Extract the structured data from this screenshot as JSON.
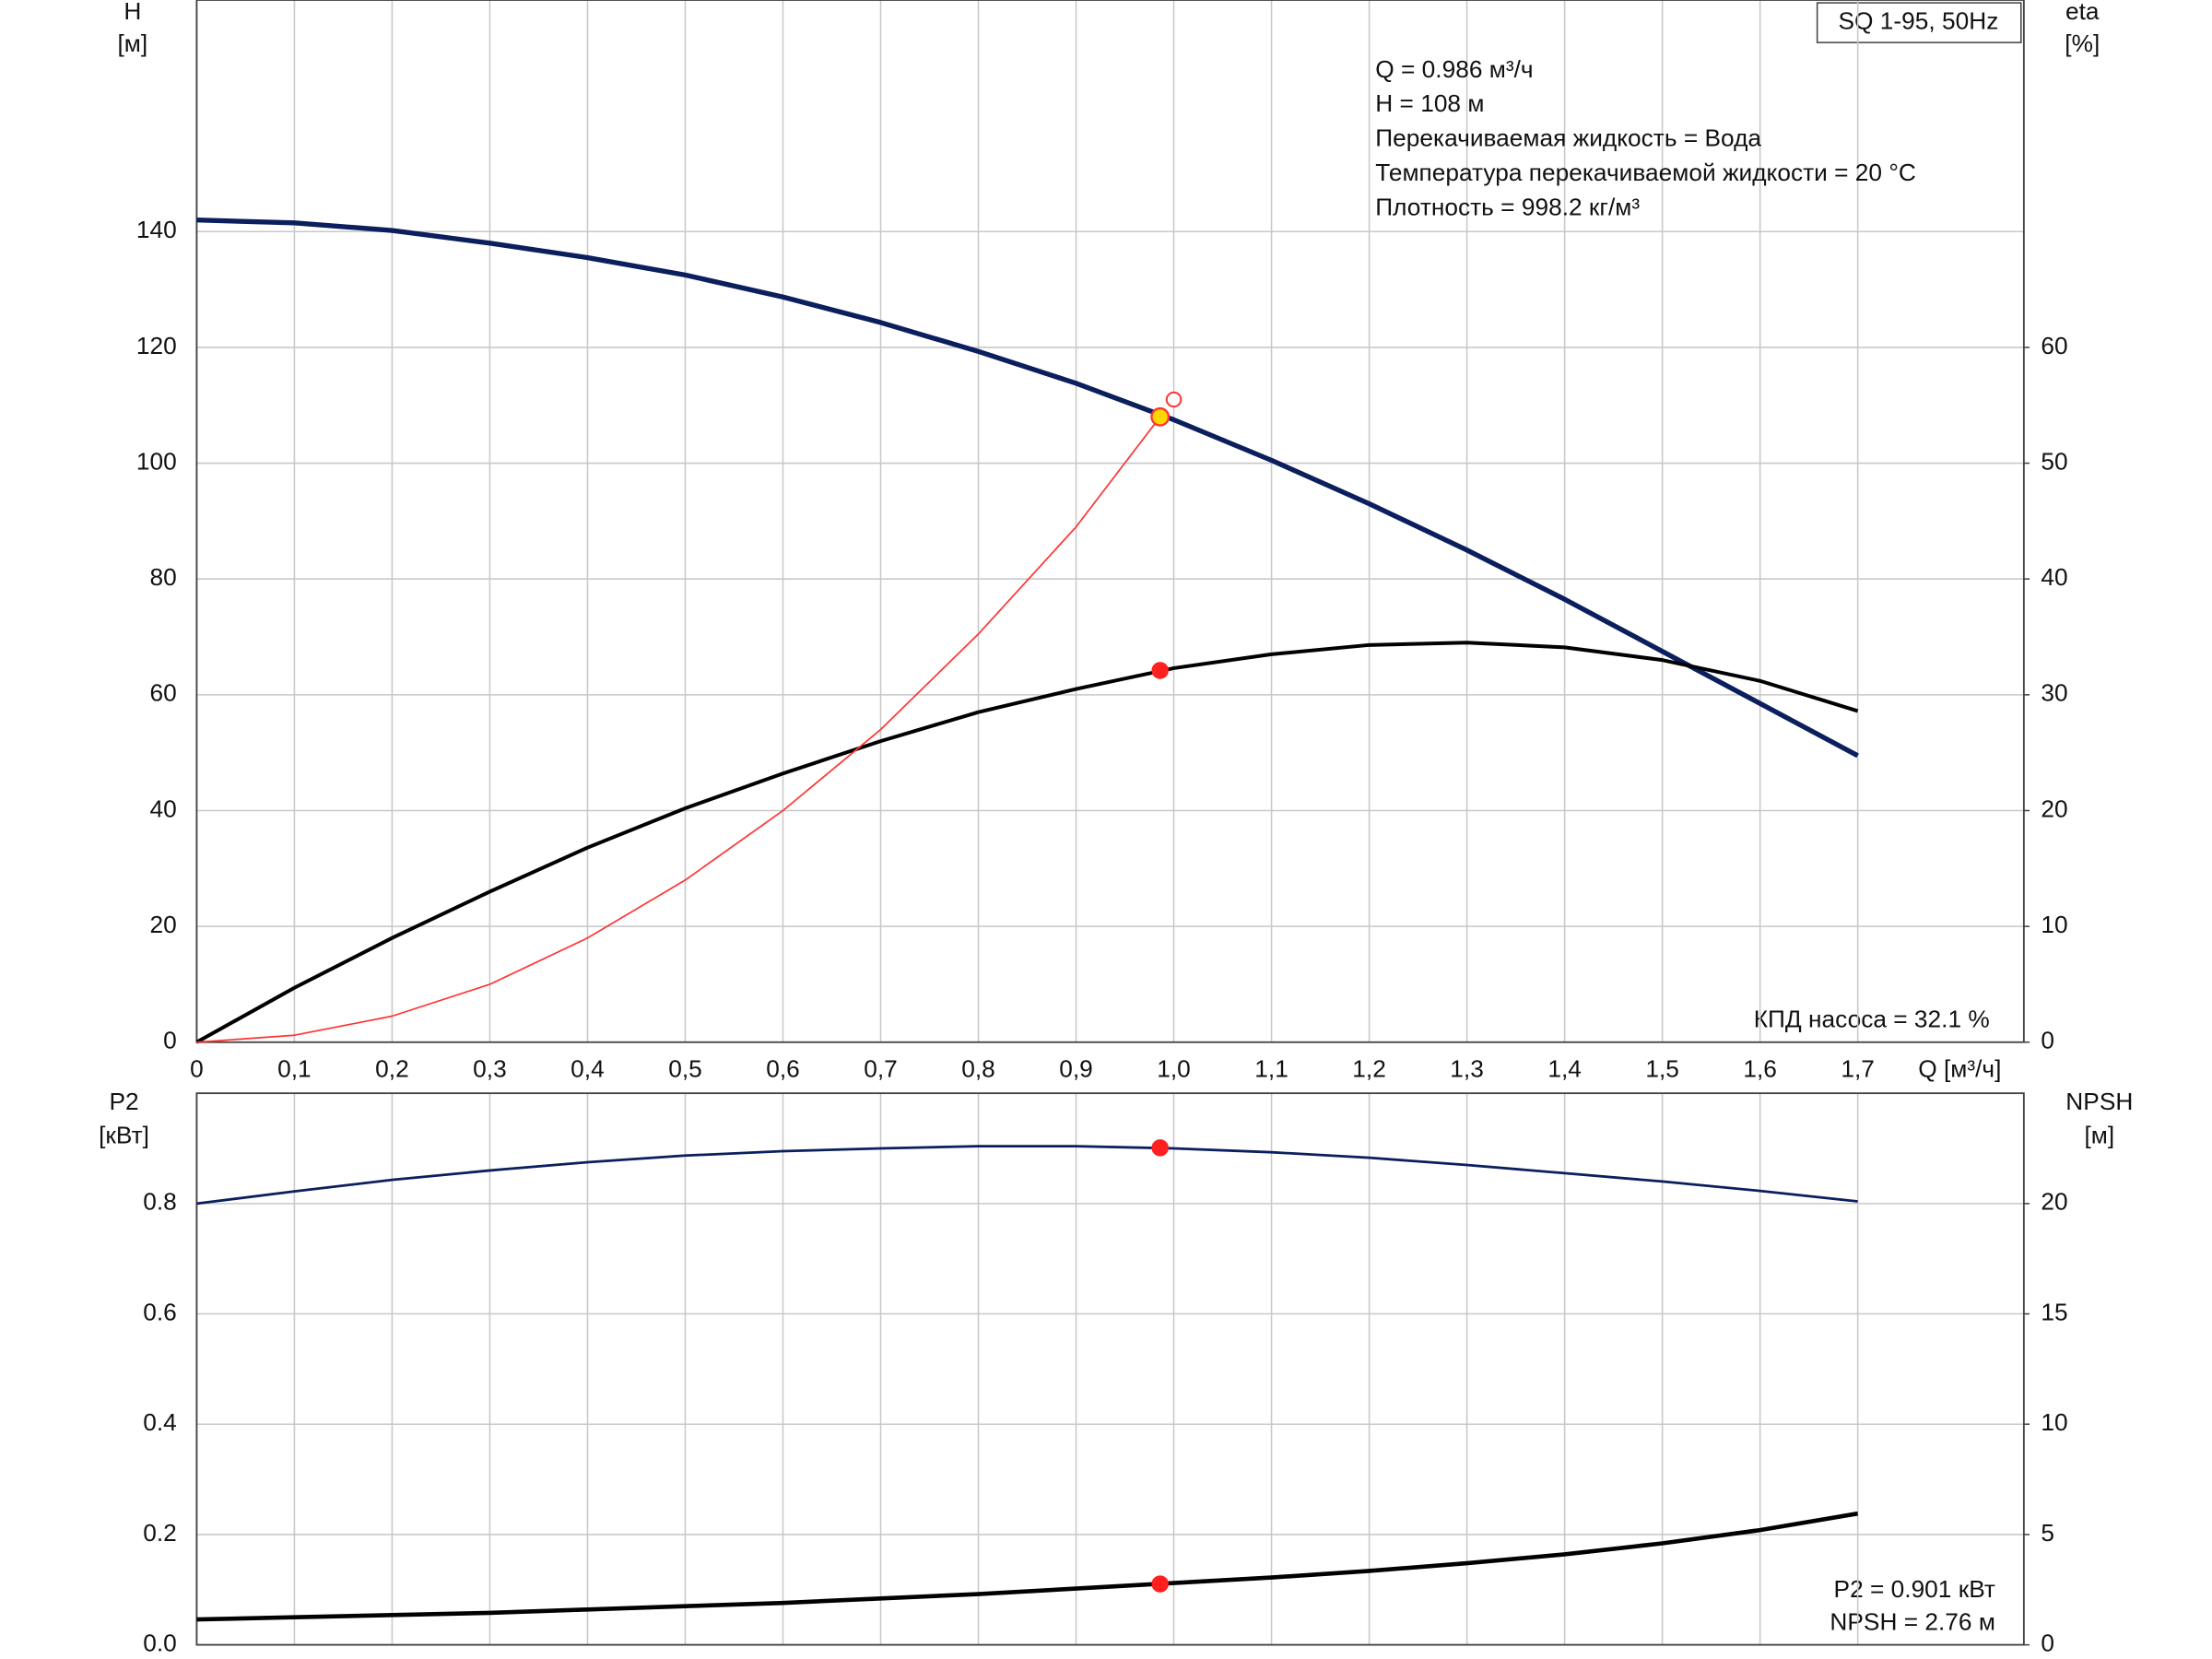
{
  "chart_data": [
    {
      "type": "line",
      "title": "SQ 1-95, 50Hz",
      "info": [
        "Q = 0.986 м³/ч",
        "H = 108 м",
        "Перекачиваемая жидкость = Вода",
        "Температура перекачиваемой жидкости = 20 °C",
        "Плотность = 998.2 кг/м³"
      ],
      "annotation": "КПД насоса = 32.1 %",
      "ylabel": [
        "H",
        "[м]"
      ],
      "y2label": [
        "eta",
        "[%]"
      ],
      "xlabel": "Q [м³/ч]",
      "xlim": [
        0,
        1.87
      ],
      "xticks": [
        0,
        {
          "value": 0.1,
          "label": "0,1"
        },
        {
          "value": 0.2,
          "label": "0,2"
        },
        {
          "value": 0.3,
          "label": "0,3"
        },
        {
          "value": 0.4,
          "label": "0,4"
        },
        {
          "value": 0.5,
          "label": "0,5"
        },
        {
          "value": 0.6,
          "label": "0,6"
        },
        {
          "value": 0.7,
          "label": "0,7"
        },
        {
          "value": 0.8,
          "label": "0,8"
        },
        {
          "value": 0.9,
          "label": "0,9"
        },
        {
          "value": 1.0,
          "label": "1,0"
        },
        {
          "value": 1.1,
          "label": "1,1"
        },
        {
          "value": 1.2,
          "label": "1,2"
        },
        {
          "value": 1.3,
          "label": "1,3"
        },
        {
          "value": 1.4,
          "label": "1,4"
        },
        {
          "value": 1.5,
          "label": "1,5"
        },
        {
          "value": 1.6,
          "label": "1,6"
        },
        {
          "value": 1.7,
          "label": "1,7"
        }
      ],
      "ylim": [
        0,
        180
      ],
      "yticks": [
        0,
        20,
        40,
        60,
        80,
        100,
        120,
        140
      ],
      "y2lim": [
        0,
        90
      ],
      "y2ticks": [
        0,
        10,
        20,
        30,
        40,
        50,
        60
      ],
      "grid": true,
      "series": [
        {
          "color": "#0b1f5e",
          "x": [
            0,
            0.1,
            0.2,
            0.3,
            0.4,
            0.5,
            0.6,
            0.7,
            0.8,
            0.9,
            1.0,
            1.1,
            1.2,
            1.3,
            1.4,
            1.5,
            1.6,
            1.7
          ],
          "values": [
            142,
            141.5,
            140.2,
            138,
            135.5,
            132.5,
            128.7,
            124.3,
            119.3,
            113.8,
            107.5,
            100.5,
            93,
            85,
            76.5,
            67.5,
            58.5,
            49.5
          ]
        },
        {
          "color": "#000000",
          "axis": "y2",
          "x": [
            0,
            0.1,
            0.2,
            0.3,
            0.4,
            0.5,
            0.6,
            0.7,
            0.8,
            0.9,
            1.0,
            1.1,
            1.2,
            1.3,
            1.4,
            1.5,
            1.6,
            1.7
          ],
          "values": [
            0,
            4.7,
            9,
            13,
            16.8,
            20.2,
            23.2,
            26,
            28.5,
            30.5,
            32.3,
            33.5,
            34.3,
            34.5,
            34.1,
            33,
            31.2,
            28.6
          ]
        },
        {
          "color": "#ff3333",
          "x": [
            0,
            0.1,
            0.2,
            0.3,
            0.4,
            0.5,
            0.6,
            0.7,
            0.8,
            0.9,
            0.986
          ],
          "values": [
            0,
            1.2,
            4.5,
            10,
            18,
            28,
            40,
            54,
            70.5,
            89,
            108
          ]
        }
      ],
      "duty_point": {
        "x": 0.986,
        "H": 108,
        "eta": 32.1
      },
      "requested_point": {
        "x": 1.0,
        "H": 111
      }
    },
    {
      "type": "line",
      "ylabel": [
        "P2",
        "[кВт]"
      ],
      "y2label": [
        "NPSH",
        "[м]"
      ],
      "annotations": [
        "P2 = 0.901 кВт",
        "NPSH = 2.76 м"
      ],
      "xlim": [
        0,
        1.87
      ],
      "ylim": [
        0,
        1.0
      ],
      "yticks": [
        {
          "value": 0,
          "label": "0.0"
        },
        0.2,
        0.4,
        0.6,
        0.8
      ],
      "y2lim": [
        0,
        25
      ],
      "y2ticks": [
        0,
        5,
        10,
        15,
        20
      ],
      "grid": true,
      "series": [
        {
          "color": "#0b1f5e",
          "x": [
            0,
            0.1,
            0.2,
            0.3,
            0.4,
            0.5,
            0.6,
            0.7,
            0.8,
            0.9,
            1.0,
            1.1,
            1.2,
            1.3,
            1.4,
            1.5,
            1.6,
            1.7
          ],
          "values": [
            0.8,
            0.822,
            0.843,
            0.86,
            0.875,
            0.887,
            0.895,
            0.9,
            0.904,
            0.904,
            0.9,
            0.893,
            0.883,
            0.87,
            0.855,
            0.84,
            0.823,
            0.804
          ]
        },
        {
          "color": "#000000",
          "axis": "y2",
          "x": [
            0,
            0.1,
            0.2,
            0.3,
            0.4,
            0.5,
            0.6,
            0.7,
            0.8,
            0.9,
            1.0,
            1.1,
            1.2,
            1.3,
            1.4,
            1.5,
            1.6,
            1.7
          ],
          "values": [
            1.15,
            1.25,
            1.35,
            1.45,
            1.6,
            1.75,
            1.9,
            2.1,
            2.3,
            2.55,
            2.8,
            3.05,
            3.35,
            3.7,
            4.1,
            4.6,
            5.2,
            5.95
          ]
        }
      ],
      "duty_point": {
        "x": 0.986,
        "P2": 0.901,
        "NPSH": 2.76
      }
    }
  ]
}
